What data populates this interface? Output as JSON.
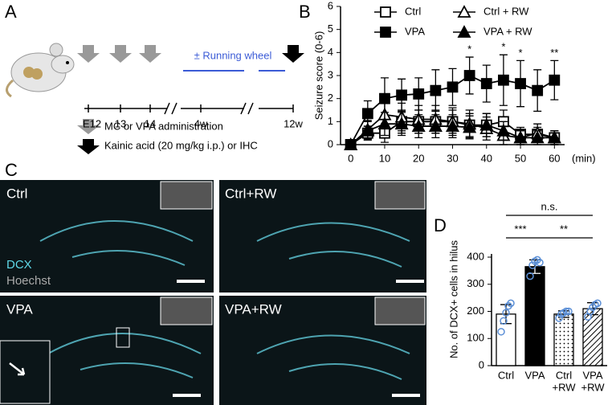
{
  "timeline": {
    "letter": "A",
    "labels": [
      "E12",
      "13",
      "14",
      "4w",
      "12w"
    ],
    "wheel": "± Running wheel",
    "legend": [
      "MC or VPA administration",
      "Kainic acid (20 mg/kg i.p.) or IHC"
    ]
  },
  "images": {
    "letter": "C",
    "stain": [
      "DCX",
      "Hoechst"
    ],
    "panels": [
      "Ctrl",
      "Ctrl+RW",
      "VPA",
      "VPA+RW"
    ]
  },
  "chart_data": [
    {
      "type": "line",
      "letter": "B",
      "ylabel": "Seizure score (0-6)",
      "xlabel": "(min)",
      "x": [
        0,
        5,
        10,
        15,
        20,
        25,
        30,
        35,
        40,
        45,
        50,
        55,
        60
      ],
      "xlim": [
        -3,
        63
      ],
      "xticks": [
        0,
        10,
        20,
        30,
        40,
        50,
        60
      ],
      "ylim": [
        0,
        6
      ],
      "yticks": [
        0,
        1,
        2,
        3,
        4,
        5,
        6
      ],
      "series": [
        {
          "name": "Ctrl",
          "marker": "square",
          "filled": false,
          "color": "#000000",
          "values": [
            0,
            0.5,
            0.5,
            1.0,
            1.0,
            1.0,
            1.0,
            0.85,
            0.85,
            1.0,
            0.45,
            0.45,
            0.3
          ],
          "errors": [
            0,
            0.3,
            0.4,
            0.5,
            0.5,
            0.5,
            0.5,
            0.5,
            0.5,
            0.5,
            0.3,
            0.3,
            0.3
          ]
        },
        {
          "name": "Ctrl + RW",
          "marker": "triangle",
          "filled": false,
          "color": "#000000",
          "values": [
            0,
            0.65,
            1.3,
            1.2,
            1.1,
            1.1,
            1.0,
            0.9,
            0.7,
            0.4,
            0.3,
            0.5,
            0.3
          ],
          "errors": [
            0,
            0.4,
            0.6,
            0.6,
            0.6,
            0.6,
            0.6,
            0.6,
            0.5,
            0.4,
            0.3,
            0.4,
            0.3
          ]
        },
        {
          "name": "VPA",
          "marker": "square",
          "filled": true,
          "color": "#000000",
          "values": [
            0,
            1.35,
            2.0,
            2.15,
            2.2,
            2.35,
            2.5,
            3.0,
            2.65,
            2.8,
            2.65,
            2.35,
            2.8
          ],
          "errors": [
            0,
            0.55,
            0.9,
            0.7,
            0.7,
            0.9,
            0.8,
            0.8,
            0.8,
            1.1,
            1.0,
            0.9,
            0.85
          ]
        },
        {
          "name": "VPA + RW",
          "marker": "triangle",
          "filled": true,
          "color": "#000000",
          "values": [
            0,
            0.6,
            0.9,
            0.9,
            0.8,
            0.8,
            0.8,
            0.75,
            0.85,
            0.6,
            0.3,
            0.3,
            0.3
          ],
          "errors": [
            0,
            0.4,
            0.5,
            0.5,
            0.5,
            0.5,
            0.5,
            0.5,
            0.5,
            0.4,
            0.3,
            0.3,
            0.3
          ]
        }
      ],
      "annotations": [
        {
          "x": 35,
          "text": "*"
        },
        {
          "x": 45,
          "text": "*"
        },
        {
          "x": 50,
          "text": "*"
        },
        {
          "x": 60,
          "text": "**"
        }
      ]
    },
    {
      "type": "bar",
      "letter": "D",
      "ylabel": "No. of DCX+ cells in hilus",
      "categories": [
        [
          "Ctrl"
        ],
        [
          "VPA"
        ],
        [
          "Ctrl",
          "+RW"
        ],
        [
          "VPA",
          "+RW"
        ]
      ],
      "values": [
        190,
        365,
        190,
        210
      ],
      "errors": [
        35,
        25,
        12,
        22
      ],
      "fills": [
        "#ffffff",
        "#000000",
        "dots",
        "hatch"
      ],
      "points": [
        [
          125,
          165,
          195,
          220,
          230
        ],
        [
          330,
          370,
          385,
          390,
          380
        ],
        [
          175,
          190,
          195,
          200,
          200
        ],
        [
          180,
          200,
          215,
          225,
          230
        ]
      ],
      "point_color": "#5b8fd6",
      "ylim": [
        0,
        400
      ],
      "yticks": [
        0,
        100,
        200,
        300,
        400
      ],
      "annotations": [
        {
          "from": 0,
          "to": 3,
          "text": "n.s."
        },
        {
          "from": 1,
          "to": 3,
          "text": "**"
        },
        {
          "from": 0,
          "to": 1,
          "text": "***"
        }
      ]
    }
  ]
}
